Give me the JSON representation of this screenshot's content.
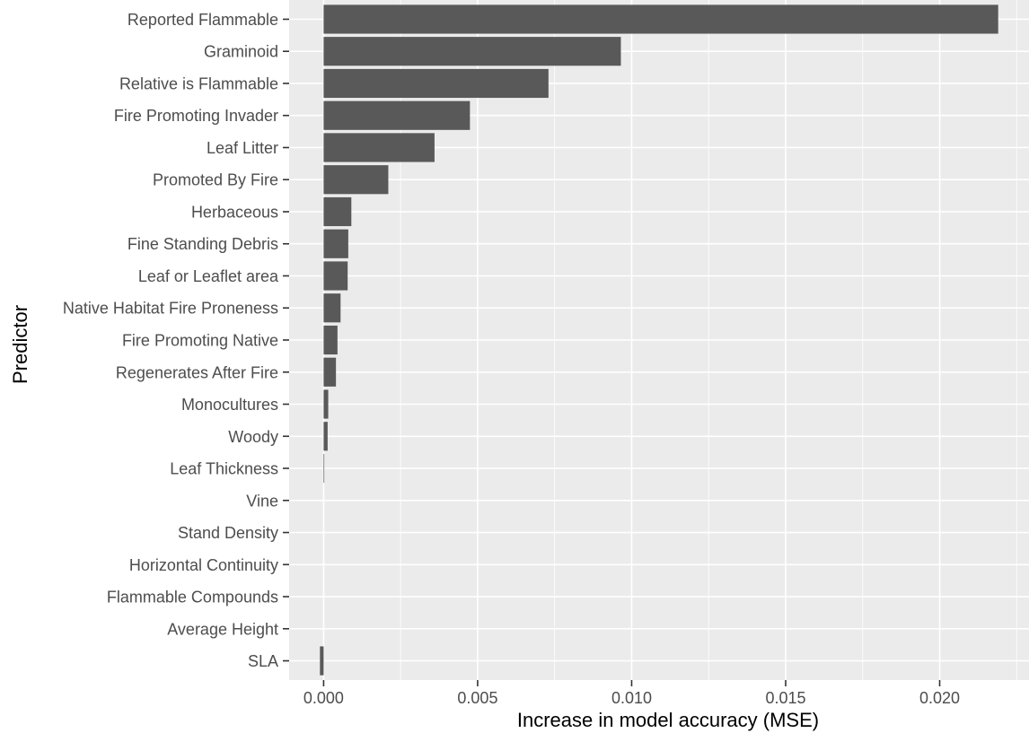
{
  "chart_data": {
    "type": "bar",
    "orientation": "horizontal",
    "xlabel": "Increase in model accuracy (MSE)",
    "ylabel": "Predictor",
    "xlim": [
      -0.00112,
      0.0229
    ],
    "xticks": [
      0.0,
      0.005,
      0.01,
      0.015,
      0.02
    ],
    "xtick_labels": [
      "0.000",
      "0.005",
      "0.010",
      "0.015",
      "0.020"
    ],
    "grid": true,
    "panel_background": "#ebebeb",
    "grid_color": "#ffffff",
    "bar_color": "#595959",
    "categories": [
      "Reported Flammable",
      "Graminoid",
      "Relative is Flammable",
      "Fire Promoting Invader",
      "Leaf Litter",
      "Promoted By Fire",
      "Herbaceous",
      "Fine Standing Debris",
      "Leaf or Leaflet area",
      "Native Habitat Fire Proneness",
      "Fire Promoting Native",
      "Regenerates After Fire",
      "Monocultures",
      "Woody",
      "Leaf Thickness",
      "Vine",
      "Stand Density",
      "Horizontal Continuity",
      "Flammable Compounds",
      "Average Height",
      "SLA"
    ],
    "values": [
      0.0219,
      0.00965,
      0.0073,
      0.00475,
      0.0036,
      0.0021,
      0.0009,
      0.0008,
      0.00078,
      0.00055,
      0.00045,
      0.0004,
      0.00015,
      0.00013,
      2e-05,
      0.0,
      0.0,
      0.0,
      0.0,
      0.0,
      -0.00012
    ]
  }
}
